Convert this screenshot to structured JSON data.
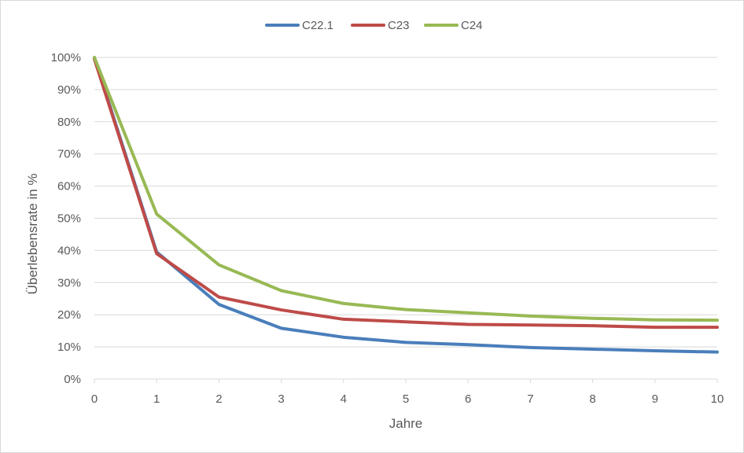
{
  "chart_data": {
    "type": "line",
    "title": "",
    "xlabel": "Jahre",
    "ylabel": "Überlebensrate in %",
    "x": [
      0,
      1,
      2,
      3,
      4,
      5,
      6,
      7,
      8,
      9,
      10
    ],
    "x_tick_labels": [
      "0",
      "1",
      "2",
      "3",
      "4",
      "5",
      "6",
      "7",
      "8",
      "9",
      "10"
    ],
    "y_ticks": [
      0,
      10,
      20,
      30,
      40,
      50,
      60,
      70,
      80,
      90,
      100
    ],
    "y_tick_labels": [
      "0%",
      "10%",
      "20%",
      "30%",
      "40%",
      "50%",
      "60%",
      "70%",
      "80%",
      "90%",
      "100%"
    ],
    "ylim": [
      0,
      100
    ],
    "xlim": [
      0,
      10
    ],
    "grid": true,
    "legend_position": "top",
    "series": [
      {
        "name": "C22.1",
        "color": "#4a7ebb",
        "values": [
          100,
          39.5,
          23.2,
          15.8,
          13.0,
          11.4,
          10.7,
          9.8,
          9.3,
          8.8,
          8.4
        ]
      },
      {
        "name": "C23",
        "color": "#be4b48",
        "values": [
          99.5,
          39.0,
          25.5,
          21.5,
          18.6,
          17.8,
          17.0,
          16.8,
          16.6,
          16.1,
          16.1
        ]
      },
      {
        "name": "C24",
        "color": "#98b954",
        "values": [
          100,
          51.3,
          35.5,
          27.5,
          23.5,
          21.6,
          20.6,
          19.6,
          18.9,
          18.4,
          18.3
        ]
      }
    ]
  }
}
